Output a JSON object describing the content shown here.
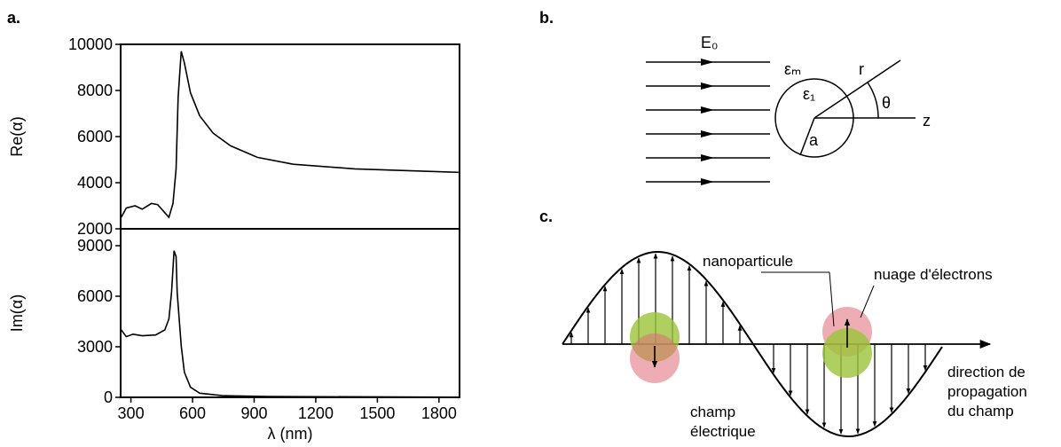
{
  "chart_data": [
    {
      "type": "line",
      "ylabel": "Re(α)",
      "xlim": [
        250,
        1900
      ],
      "ylim": [
        2000,
        10000
      ],
      "yticks": [
        2000,
        4000,
        6000,
        8000,
        10000
      ],
      "series": [
        {
          "color": "#000000",
          "x": [
            253,
            277,
            320,
            355,
            400,
            430,
            465,
            485,
            505,
            520,
            530,
            545,
            560,
            590,
            635,
            700,
            785,
            915,
            1090,
            1390,
            1895
          ],
          "values": [
            2500,
            2900,
            3000,
            2850,
            3100,
            3050,
            2700,
            2500,
            3100,
            4600,
            7700,
            9700,
            9200,
            7900,
            6900,
            6150,
            5600,
            5100,
            4800,
            4600,
            4450
          ]
        }
      ]
    },
    {
      "type": "line",
      "ylabel": "Im(α)",
      "xlabel": "λ (nm)",
      "xlim": [
        250,
        1900
      ],
      "ylim": [
        0,
        10000
      ],
      "yticks": [
        0,
        3000,
        6000,
        9000
      ],
      "xticks": [
        300,
        600,
        900,
        1200,
        1500,
        1800
      ],
      "series": [
        {
          "color": "#000000",
          "x": [
            253,
            277,
            310,
            355,
            420,
            465,
            485,
            498,
            510,
            520,
            525,
            545,
            560,
            590,
            635,
            745,
            960,
            1895
          ],
          "values": [
            4000,
            3600,
            3750,
            3650,
            3700,
            4000,
            4650,
            6250,
            8700,
            8350,
            6250,
            3050,
            1500,
            600,
            250,
            100,
            50,
            10
          ]
        }
      ]
    }
  ],
  "panel_labels": [
    "a.",
    "b.",
    "c."
  ],
  "diagram_b": {
    "field": "E₀",
    "medium": "εₘ",
    "particle": "ε₁",
    "radius_vector": "r",
    "angle": "θ",
    "axis": "z",
    "radius": "a"
  },
  "diagram_c": {
    "nanoparticle": "nanoparticule",
    "cloud": "nuage d'électrons",
    "field": [
      "champ",
      "électrique"
    ],
    "direction": [
      "direction de",
      "propagation",
      "du champ"
    ]
  }
}
